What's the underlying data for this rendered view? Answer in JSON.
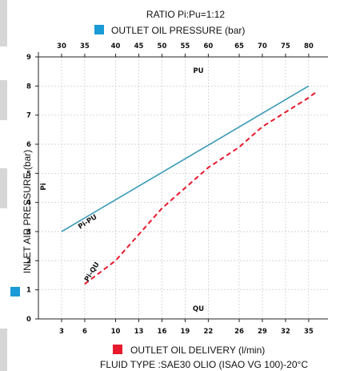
{
  "chart_data": {
    "type": "line",
    "title": "RATIO Pi:Pu=1:12",
    "top_axis": {
      "label": "OUTLET OIL PRESSURE (bar)",
      "ticks": [
        "30",
        "35",
        "40",
        "45",
        "50",
        "55",
        "60",
        "65",
        "70",
        "75",
        "80"
      ],
      "inner_label": "PU"
    },
    "bottom_axis": {
      "label": "OUTLET OIL DELIVERY (l/min)",
      "ticks": [
        "3",
        "6",
        "10",
        "13",
        "16",
        "19",
        "22",
        "26",
        "29",
        "32",
        "35"
      ],
      "inner_label": "QU",
      "xlim": [
        0,
        37.5
      ]
    },
    "y_axis": {
      "label": "INLET AIR PRESSURE (bar)",
      "ticks": [
        "0",
        "1",
        "2",
        "3",
        "4",
        "5",
        "6",
        "7",
        "8",
        "9"
      ],
      "inner_label": "Pi",
      "ylim": [
        0,
        9
      ]
    },
    "footer": "FLUID TYPE :SAE30 OLIO (ISAO VG 100)-20°C",
    "grid": true,
    "series": [
      {
        "name": "Pi-PU",
        "color": "#3a9ab8",
        "style": "solid",
        "x": [
          3,
          35
        ],
        "y": [
          3,
          8
        ]
      },
      {
        "name": "Pi-QU",
        "color": "#e8192c",
        "style": "dashed",
        "x": [
          6,
          10,
          13,
          16,
          19,
          22,
          26,
          29,
          32,
          35,
          36
        ],
        "y": [
          1.2,
          2.0,
          2.9,
          3.8,
          4.5,
          5.2,
          5.9,
          6.6,
          7.1,
          7.6,
          7.8
        ]
      }
    ]
  },
  "legend_colors": {
    "outlet_pressure": "#1a9ad6",
    "inlet_air_pressure": "#1a9ad6",
    "outlet_delivery": "#e8192c"
  }
}
